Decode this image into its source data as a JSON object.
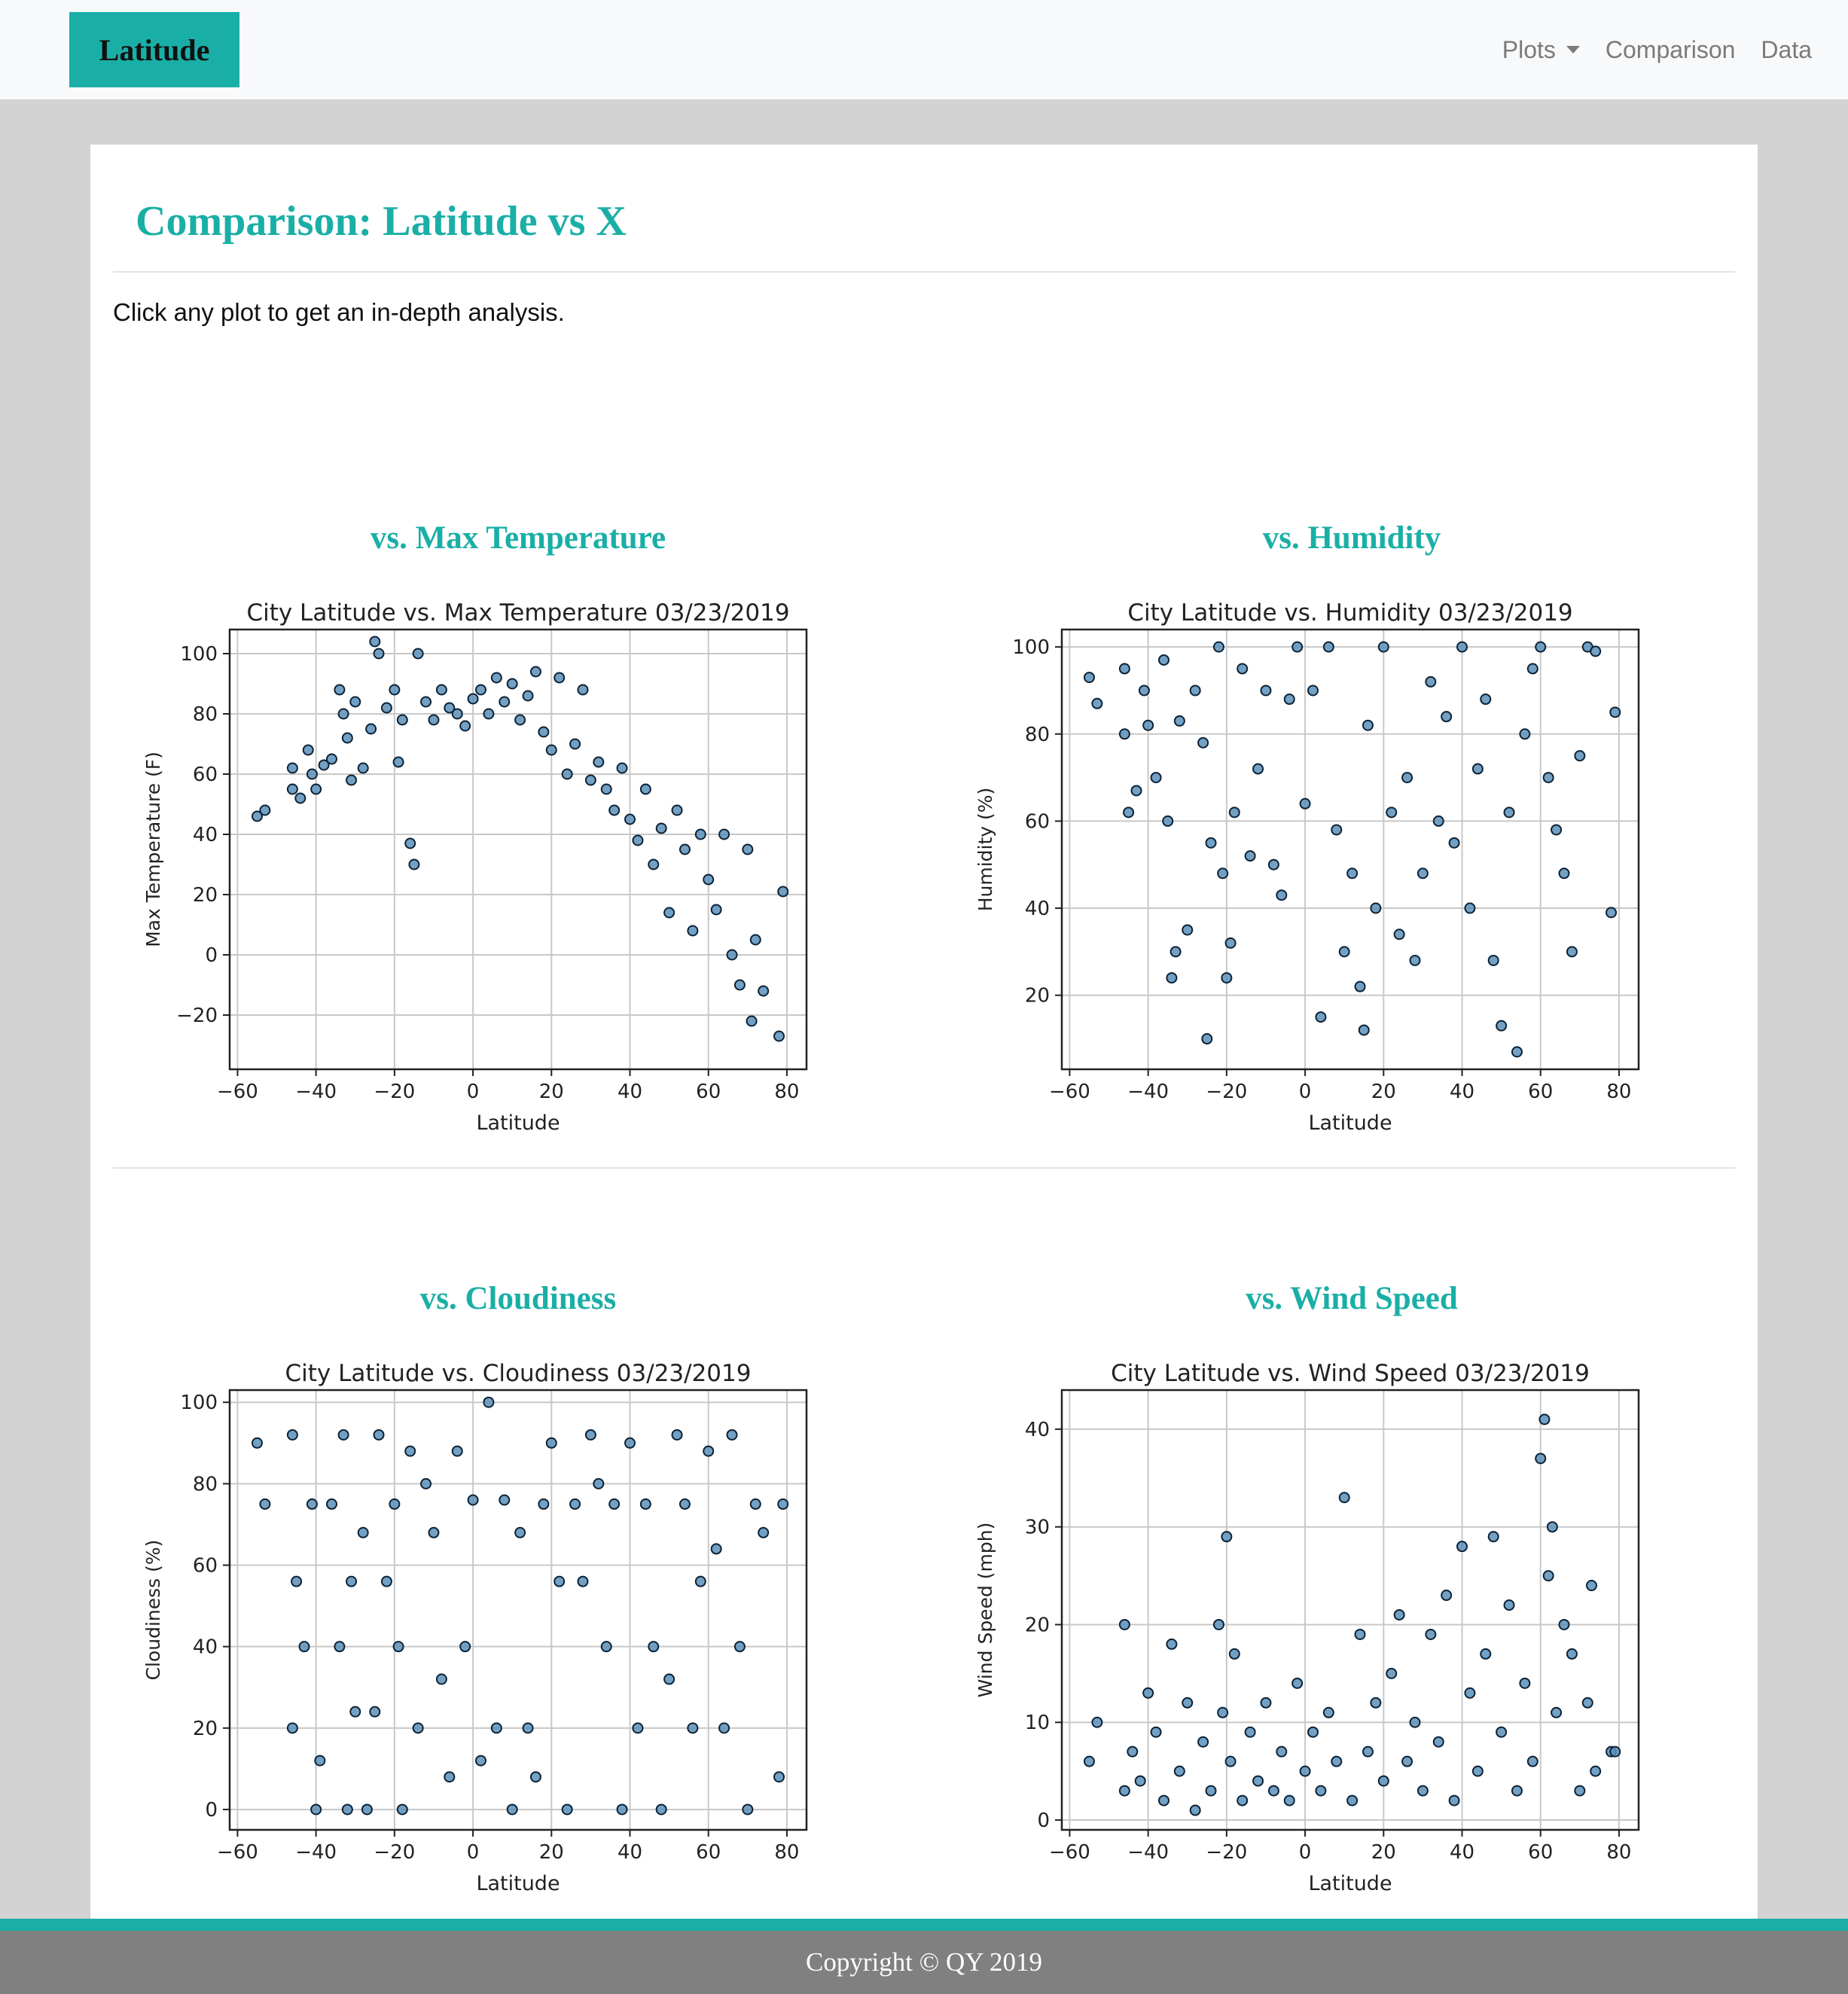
{
  "nav": {
    "brand": "Latitude",
    "links": [
      {
        "label": "Plots",
        "dropdown": true
      },
      {
        "label": "Comparison"
      },
      {
        "label": "Data"
      }
    ]
  },
  "page": {
    "title": "Comparison: Latitude vs X",
    "intro": "Click any plot to get an in-depth analysis."
  },
  "plots": [
    {
      "heading": "vs. Max Temperature"
    },
    {
      "heading": "vs. Humidity"
    },
    {
      "heading": "vs. Cloudiness"
    },
    {
      "heading": "vs. Wind Speed"
    }
  ],
  "footer": {
    "text": "Copyright © QY 2019"
  },
  "colors": {
    "accent": "#1aafa6",
    "marker_fill": "#5b8fb9",
    "marker_edge": "#0b2236"
  },
  "chart_data": [
    {
      "type": "scatter",
      "title": "City Latitude vs. Max Temperature 03/23/2019",
      "xlabel": "Latitude",
      "ylabel": "Max Temperature (F)",
      "xlim": [
        -62,
        85
      ],
      "ylim": [
        -38,
        108
      ],
      "xticks": [
        -60,
        -40,
        -20,
        0,
        20,
        40,
        60,
        80
      ],
      "yticks": [
        -20,
        0,
        20,
        40,
        60,
        80,
        100
      ],
      "grid": true,
      "points": [
        [
          -55,
          46
        ],
        [
          -53,
          48
        ],
        [
          -46,
          62
        ],
        [
          -46,
          55
        ],
        [
          -44,
          52
        ],
        [
          -42,
          68
        ],
        [
          -41,
          60
        ],
        [
          -40,
          55
        ],
        [
          -38,
          63
        ],
        [
          -36,
          65
        ],
        [
          -34,
          88
        ],
        [
          -33,
          80
        ],
        [
          -32,
          72
        ],
        [
          -31,
          58
        ],
        [
          -30,
          84
        ],
        [
          -28,
          62
        ],
        [
          -26,
          75
        ],
        [
          -25,
          104
        ],
        [
          -24,
          100
        ],
        [
          -22,
          82
        ],
        [
          -20,
          88
        ],
        [
          -19,
          64
        ],
        [
          -18,
          78
        ],
        [
          -16,
          37
        ],
        [
          -15,
          30
        ],
        [
          -14,
          100
        ],
        [
          -12,
          84
        ],
        [
          -10,
          78
        ],
        [
          -8,
          88
        ],
        [
          -6,
          82
        ],
        [
          -4,
          80
        ],
        [
          -2,
          76
        ],
        [
          0,
          85
        ],
        [
          2,
          88
        ],
        [
          4,
          80
        ],
        [
          6,
          92
        ],
        [
          8,
          84
        ],
        [
          10,
          90
        ],
        [
          12,
          78
        ],
        [
          14,
          86
        ],
        [
          16,
          94
        ],
        [
          18,
          74
        ],
        [
          20,
          68
        ],
        [
          22,
          92
        ],
        [
          24,
          60
        ],
        [
          26,
          70
        ],
        [
          28,
          88
        ],
        [
          30,
          58
        ],
        [
          32,
          64
        ],
        [
          34,
          55
        ],
        [
          36,
          48
        ],
        [
          38,
          62
        ],
        [
          40,
          45
        ],
        [
          42,
          38
        ],
        [
          44,
          55
        ],
        [
          46,
          30
        ],
        [
          48,
          42
        ],
        [
          50,
          14
        ],
        [
          52,
          48
        ],
        [
          54,
          35
        ],
        [
          56,
          8
        ],
        [
          58,
          40
        ],
        [
          60,
          25
        ],
        [
          62,
          15
        ],
        [
          64,
          40
        ],
        [
          66,
          0
        ],
        [
          68,
          -10
        ],
        [
          70,
          35
        ],
        [
          71,
          -22
        ],
        [
          72,
          5
        ],
        [
          74,
          -12
        ],
        [
          78,
          -27
        ],
        [
          79,
          21
        ]
      ]
    },
    {
      "type": "scatter",
      "title": "City Latitude vs. Humidity 03/23/2019",
      "xlabel": "Latitude",
      "ylabel": "Humidity (%)",
      "xlim": [
        -62,
        85
      ],
      "ylim": [
        3,
        104
      ],
      "xticks": [
        -60,
        -40,
        -20,
        0,
        20,
        40,
        60,
        80
      ],
      "yticks": [
        20,
        40,
        60,
        80,
        100
      ],
      "grid": true,
      "points": [
        [
          -55,
          93
        ],
        [
          -53,
          87
        ],
        [
          -46,
          95
        ],
        [
          -46,
          80
        ],
        [
          -45,
          62
        ],
        [
          -43,
          67
        ],
        [
          -41,
          90
        ],
        [
          -40,
          82
        ],
        [
          -38,
          70
        ],
        [
          -36,
          97
        ],
        [
          -35,
          60
        ],
        [
          -34,
          24
        ],
        [
          -33,
          30
        ],
        [
          -32,
          83
        ],
        [
          -30,
          35
        ],
        [
          -28,
          90
        ],
        [
          -26,
          78
        ],
        [
          -25,
          10
        ],
        [
          -24,
          55
        ],
        [
          -22,
          100
        ],
        [
          -21,
          48
        ],
        [
          -20,
          24
        ],
        [
          -19,
          32
        ],
        [
          -18,
          62
        ],
        [
          -16,
          95
        ],
        [
          -14,
          52
        ],
        [
          -12,
          72
        ],
        [
          -10,
          90
        ],
        [
          -8,
          50
        ],
        [
          -6,
          43
        ],
        [
          -4,
          88
        ],
        [
          -2,
          100
        ],
        [
          0,
          64
        ],
        [
          2,
          90
        ],
        [
          4,
          15
        ],
        [
          6,
          100
        ],
        [
          8,
          58
        ],
        [
          10,
          30
        ],
        [
          12,
          48
        ],
        [
          14,
          22
        ],
        [
          15,
          12
        ],
        [
          16,
          82
        ],
        [
          18,
          40
        ],
        [
          20,
          100
        ],
        [
          22,
          62
        ],
        [
          24,
          34
        ],
        [
          26,
          70
        ],
        [
          28,
          28
        ],
        [
          30,
          48
        ],
        [
          32,
          92
        ],
        [
          34,
          60
        ],
        [
          36,
          84
        ],
        [
          38,
          55
        ],
        [
          40,
          100
        ],
        [
          42,
          40
        ],
        [
          44,
          72
        ],
        [
          46,
          88
        ],
        [
          48,
          28
        ],
        [
          50,
          13
        ],
        [
          52,
          62
        ],
        [
          54,
          7
        ],
        [
          56,
          80
        ],
        [
          58,
          95
        ],
        [
          60,
          100
        ],
        [
          62,
          70
        ],
        [
          64,
          58
        ],
        [
          66,
          48
        ],
        [
          68,
          30
        ],
        [
          70,
          75
        ],
        [
          72,
          100
        ],
        [
          74,
          99
        ],
        [
          78,
          39
        ],
        [
          79,
          85
        ]
      ]
    },
    {
      "type": "scatter",
      "title": "City Latitude vs. Cloudiness 03/23/2019",
      "xlabel": "Latitude",
      "ylabel": "Cloudiness (%)",
      "xlim": [
        -62,
        85
      ],
      "ylim": [
        -5,
        103
      ],
      "xticks": [
        -60,
        -40,
        -20,
        0,
        20,
        40,
        60,
        80
      ],
      "yticks": [
        0,
        20,
        40,
        60,
        80,
        100
      ],
      "grid": true,
      "points": [
        [
          -55,
          90
        ],
        [
          -53,
          75
        ],
        [
          -46,
          92
        ],
        [
          -46,
          20
        ],
        [
          -45,
          56
        ],
        [
          -43,
          40
        ],
        [
          -41,
          75
        ],
        [
          -40,
          0
        ],
        [
          -39,
          12
        ],
        [
          -36,
          75
        ],
        [
          -34,
          40
        ],
        [
          -33,
          92
        ],
        [
          -32,
          0
        ],
        [
          -31,
          56
        ],
        [
          -30,
          24
        ],
        [
          -28,
          68
        ],
        [
          -27,
          0
        ],
        [
          -25,
          24
        ],
        [
          -24,
          92
        ],
        [
          -22,
          56
        ],
        [
          -20,
          75
        ],
        [
          -19,
          40
        ],
        [
          -18,
          0
        ],
        [
          -16,
          88
        ],
        [
          -14,
          20
        ],
        [
          -12,
          80
        ],
        [
          -10,
          68
        ],
        [
          -8,
          32
        ],
        [
          -6,
          8
        ],
        [
          -4,
          88
        ],
        [
          -2,
          40
        ],
        [
          0,
          76
        ],
        [
          2,
          12
        ],
        [
          4,
          100
        ],
        [
          6,
          20
        ],
        [
          8,
          76
        ],
        [
          10,
          0
        ],
        [
          12,
          68
        ],
        [
          14,
          20
        ],
        [
          16,
          8
        ],
        [
          18,
          75
        ],
        [
          20,
          90
        ],
        [
          22,
          56
        ],
        [
          24,
          0
        ],
        [
          26,
          75
        ],
        [
          28,
          56
        ],
        [
          30,
          92
        ],
        [
          32,
          80
        ],
        [
          34,
          40
        ],
        [
          36,
          75
        ],
        [
          38,
          0
        ],
        [
          40,
          90
        ],
        [
          42,
          20
        ],
        [
          44,
          75
        ],
        [
          46,
          40
        ],
        [
          48,
          0
        ],
        [
          50,
          32
        ],
        [
          52,
          92
        ],
        [
          54,
          75
        ],
        [
          56,
          20
        ],
        [
          58,
          56
        ],
        [
          60,
          88
        ],
        [
          62,
          64
        ],
        [
          64,
          20
        ],
        [
          66,
          92
        ],
        [
          68,
          40
        ],
        [
          70,
          0
        ],
        [
          72,
          75
        ],
        [
          74,
          68
        ],
        [
          78,
          8
        ],
        [
          79,
          75
        ]
      ]
    },
    {
      "type": "scatter",
      "title": "City Latitude vs. Wind Speed 03/23/2019",
      "xlabel": "Latitude",
      "ylabel": "Wind Speed (mph)",
      "xlim": [
        -62,
        85
      ],
      "ylim": [
        -1,
        44
      ],
      "xticks": [
        -60,
        -40,
        -20,
        0,
        20,
        40,
        60,
        80
      ],
      "yticks": [
        0,
        10,
        20,
        30,
        40
      ],
      "grid": true,
      "points": [
        [
          -55,
          6
        ],
        [
          -53,
          10
        ],
        [
          -46,
          20
        ],
        [
          -46,
          3
        ],
        [
          -44,
          7
        ],
        [
          -42,
          4
        ],
        [
          -40,
          13
        ],
        [
          -38,
          9
        ],
        [
          -36,
          2
        ],
        [
          -34,
          18
        ],
        [
          -32,
          5
        ],
        [
          -30,
          12
        ],
        [
          -28,
          1
        ],
        [
          -26,
          8
        ],
        [
          -24,
          3
        ],
        [
          -22,
          20
        ],
        [
          -21,
          11
        ],
        [
          -20,
          29
        ],
        [
          -19,
          6
        ],
        [
          -18,
          17
        ],
        [
          -16,
          2
        ],
        [
          -14,
          9
        ],
        [
          -12,
          4
        ],
        [
          -10,
          12
        ],
        [
          -8,
          3
        ],
        [
          -6,
          7
        ],
        [
          -4,
          2
        ],
        [
          -2,
          14
        ],
        [
          0,
          5
        ],
        [
          2,
          9
        ],
        [
          4,
          3
        ],
        [
          6,
          11
        ],
        [
          8,
          6
        ],
        [
          10,
          33
        ],
        [
          12,
          2
        ],
        [
          14,
          19
        ],
        [
          16,
          7
        ],
        [
          18,
          12
        ],
        [
          20,
          4
        ],
        [
          22,
          15
        ],
        [
          24,
          21
        ],
        [
          26,
          6
        ],
        [
          28,
          10
        ],
        [
          30,
          3
        ],
        [
          32,
          19
        ],
        [
          34,
          8
        ],
        [
          36,
          23
        ],
        [
          38,
          2
        ],
        [
          40,
          28
        ],
        [
          42,
          13
        ],
        [
          44,
          5
        ],
        [
          46,
          17
        ],
        [
          48,
          29
        ],
        [
          50,
          9
        ],
        [
          52,
          22
        ],
        [
          54,
          3
        ],
        [
          56,
          14
        ],
        [
          58,
          6
        ],
        [
          60,
          37
        ],
        [
          61,
          41
        ],
        [
          62,
          25
        ],
        [
          63,
          30
        ],
        [
          64,
          11
        ],
        [
          66,
          20
        ],
        [
          68,
          17
        ],
        [
          70,
          3
        ],
        [
          72,
          12
        ],
        [
          73,
          24
        ],
        [
          74,
          5
        ],
        [
          78,
          7
        ],
        [
          79,
          7
        ]
      ]
    }
  ]
}
